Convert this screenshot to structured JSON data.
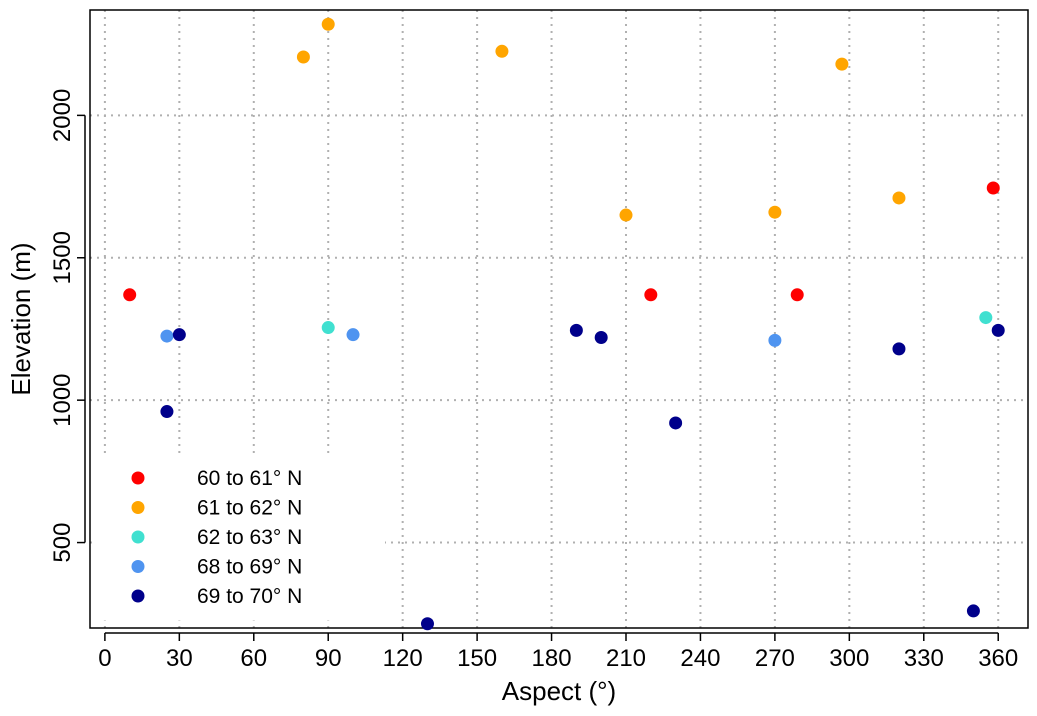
{
  "chart_data": {
    "type": "scatter",
    "xlabel": "Aspect (°)",
    "ylabel": "Elevation (m)",
    "xlim": [
      -6,
      372
    ],
    "ylim": [
      200,
      2370
    ],
    "xticks": [
      0,
      30,
      60,
      90,
      120,
      150,
      180,
      210,
      240,
      270,
      300,
      330,
      360
    ],
    "yticks": [
      500,
      1000,
      1500,
      2000
    ],
    "grid": true,
    "legend_position": "bottom-left",
    "series": [
      {
        "name": "60 to 61° N",
        "color": "#ff0000",
        "points": [
          [
            10,
            1370
          ],
          [
            220,
            1370
          ],
          [
            279,
            1370
          ],
          [
            358,
            1745
          ]
        ]
      },
      {
        "name": "61 to 62° N",
        "color": "#ffa500",
        "points": [
          [
            80,
            2205
          ],
          [
            90,
            2320
          ],
          [
            160,
            2225
          ],
          [
            210,
            1650
          ],
          [
            270,
            1660
          ],
          [
            297,
            2180
          ],
          [
            320,
            1710
          ]
        ]
      },
      {
        "name": "62 to 63° N",
        "color": "#40e0d0",
        "points": [
          [
            90,
            1255
          ],
          [
            355,
            1290
          ]
        ]
      },
      {
        "name": "68 to 69° N",
        "color": "#4f94f0",
        "points": [
          [
            25,
            1225
          ],
          [
            100,
            1230
          ],
          [
            270,
            1210
          ]
        ]
      },
      {
        "name": "69 to 70° N",
        "color": "#00008b",
        "points": [
          [
            25,
            960
          ],
          [
            30,
            1230
          ],
          [
            130,
            215
          ],
          [
            190,
            1245
          ],
          [
            200,
            1220
          ],
          [
            230,
            920
          ],
          [
            320,
            1180
          ],
          [
            350,
            260
          ],
          [
            360,
            1245
          ]
        ]
      }
    ]
  }
}
